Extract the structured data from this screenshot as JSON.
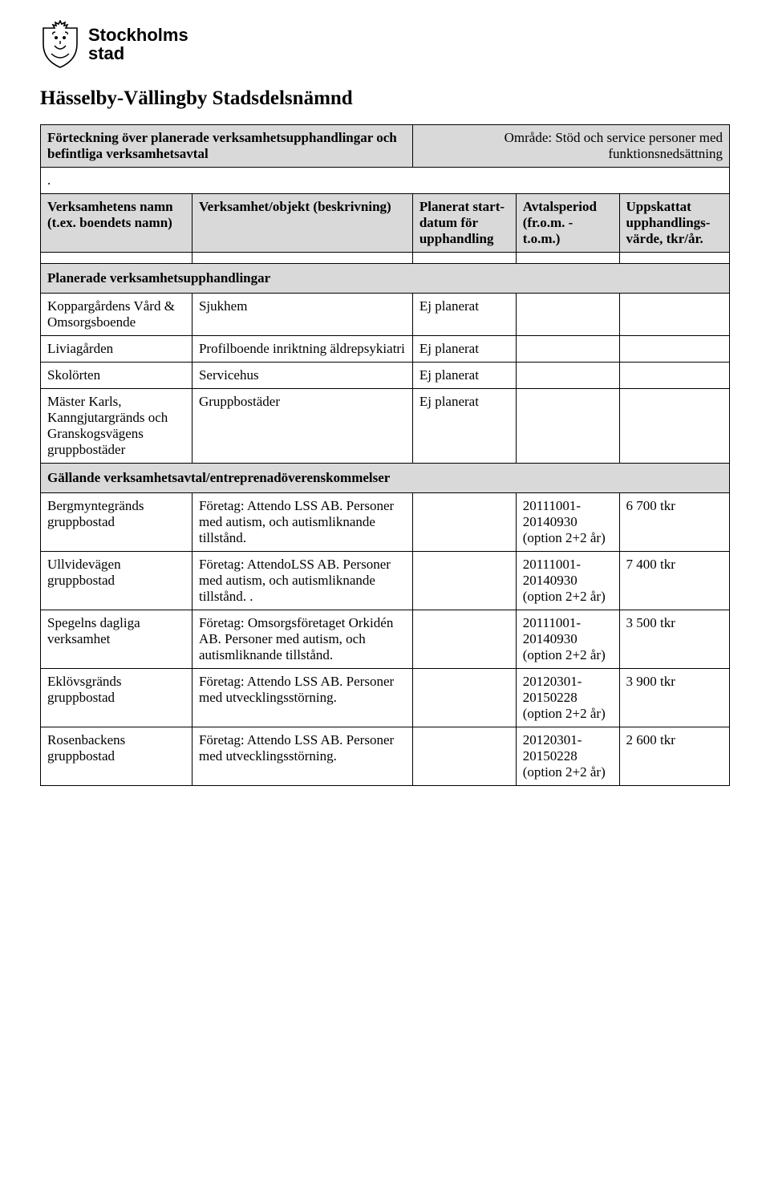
{
  "logo": {
    "line1": "Stockholms",
    "line2": "stad"
  },
  "page_title": "Hässelby-Vällingby Stadsdelsnämnd",
  "intro": {
    "left": "Förteckning över planerade verksamhetsupphandlingar och befintliga verksamhetsavtal",
    "right": "Område: Stöd och service personer med funktionsnedsättning",
    "dot": "."
  },
  "columns": {
    "c1": "Verksamhetens namn\n(t.ex. boendets namn)",
    "c2": "Verksamhet/objekt (beskrivning)",
    "c3": "Planerat start-datum för upphandling",
    "c4": "Avtalsperiod (fr.o.m. - t.o.m.)",
    "c5": "Uppskattat upphandlings-värde, tkr/år."
  },
  "sections": {
    "planned": "Planerade verksamhetsupphandlingar",
    "existing": "Gällande verksamhetsavtal/entreprenadöverenskommelser"
  },
  "planned_rows": [
    {
      "name": "Koppargårdens Vård & Omsorgsboende",
      "desc": "Sjukhem",
      "start": "Ej planerat",
      "period": "",
      "value": ""
    },
    {
      "name": "Liviagården",
      "desc": "Profilboende inriktning äldrepsykiatri",
      "start": "Ej planerat",
      "period": "",
      "value": ""
    },
    {
      "name": "Skolörten",
      "desc": "Servicehus",
      "start": "Ej planerat",
      "period": "",
      "value": ""
    },
    {
      "name": "Mäster Karls, Kanngjutargränds och Granskogsvägens gruppbostäder",
      "desc": "Gruppbostäder",
      "start": "Ej planerat",
      "period": "",
      "value": ""
    }
  ],
  "existing_rows": [
    {
      "name": "Bergmyntegränds gruppbostad",
      "desc": "Företag: Attendo LSS AB. Personer med autism, och autismliknande tillstånd.",
      "start": "",
      "period": "20111001-20140930 (option 2+2 år)",
      "value": "6 700 tkr"
    },
    {
      "name": "Ullvidevägen gruppbostad",
      "desc": "Företag: AttendoLSS AB. Personer med autism, och autismliknande tillstånd. .",
      "start": "",
      "period": "20111001-20140930 (option 2+2 år)",
      "value": "7 400 tkr"
    },
    {
      "name": "Spegelns dagliga verksamhet",
      "desc": "Företag: Omsorgsföretaget Orkidén AB. Personer med autism, och autismliknande tillstånd.",
      "start": "",
      "period": "20111001-20140930 (option 2+2 år)",
      "value": "3 500 tkr"
    },
    {
      "name": "Eklövsgränds gruppbostad",
      "desc": "Företag: Attendo LSS AB. Personer med utvecklingsstörning.",
      "start": "",
      "period": "20120301-20150228 (option 2+2 år)",
      "value": "3 900 tkr"
    },
    {
      "name": "Rosenbackens gruppbostad",
      "desc": "Företag: Attendo LSS AB. Personer med utvecklingsstörning.",
      "start": "",
      "period": "20120301-20150228 (option 2+2 år)",
      "value": "2 600 tkr"
    }
  ]
}
